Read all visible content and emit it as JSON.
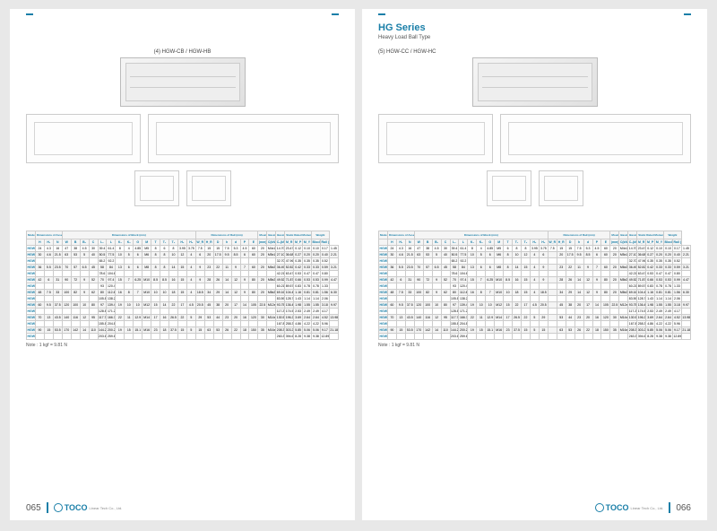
{
  "left_page": {
    "model_label": "(4) HGW-CB / HGW-HB",
    "page_num": "065",
    "logo_text": "TOCO",
    "logo_sub": "Linear Tech Co., Ltd.",
    "note": "Note : 1 kgf = 9.81 N",
    "headers_top": [
      "Model No.",
      "Dimensions of Assembly (mm)",
      "Dimensions of Block (mm)",
      "Dimensions of Rail (mm)",
      "Mounting Bolt for Rail",
      "Basic Dynamic Load Rating",
      "Basic Static Load Rating",
      "Static Rated Moment",
      "Weight"
    ],
    "cols": [
      "",
      "H",
      "H₁",
      "N",
      "W",
      "B",
      "B₁",
      "C",
      "L₁",
      "L",
      "K₁",
      "K₂",
      "G",
      "M",
      "T",
      "T₁",
      "T₂",
      "H₂",
      "H₃",
      "W_R",
      "H_R",
      "D",
      "h",
      "d",
      "P",
      "E",
      "(mm)",
      "C(kN)",
      "C₀(kN)",
      "M_R",
      "M_P",
      "M_Y",
      "Block (kg)",
      "Rail (kg/m)"
    ],
    "rows": [
      [
        "HGW15CB",
        "24",
        "4.3",
        "16",
        "47",
        "38",
        "4.5",
        "30",
        "39.4",
        "61.4",
        "8",
        "4",
        "4.85",
        "M5",
        "8",
        "6",
        "8",
        "3.95",
        "3.75",
        "7.5",
        "15",
        "15",
        "7.5",
        "5.3",
        "4.5",
        "60",
        "20",
        "M4x16",
        "14.70",
        "23.47",
        "0.12",
        "0.10",
        "0.10",
        "0.17",
        "1.45"
      ],
      [
        "HGW20CB",
        "30",
        "4.6",
        "21.5",
        "63",
        "53",
        "5",
        "40",
        "50.5",
        "77.5",
        "10",
        "5",
        "6",
        "M6",
        "8",
        "8",
        "10",
        "12",
        "4",
        "6",
        "20",
        "17.5",
        "9.5",
        "8.5",
        "6",
        "60",
        "20",
        "M5x16",
        "27.10",
        "36.68",
        "0.27",
        "0.20",
        "0.20",
        "0.40",
        "2.21"
      ],
      [
        "HGW20HB",
        "",
        "",
        "",
        "",
        "",
        "",
        "",
        "65.2",
        "92.2",
        "",
        "",
        "",
        "",
        "",
        "",
        "",
        "",
        "",
        "",
        "",
        "",
        "",
        "",
        "",
        "",
        "",
        "",
        "32.70",
        "47.96",
        "0.35",
        "0.35",
        "0.35",
        "0.52",
        ""
      ],
      [
        "HGW25CB",
        "36",
        "5.5",
        "23.5",
        "70",
        "57",
        "6.5",
        "45",
        "58",
        "84",
        "13",
        "6",
        "6",
        "M8",
        "8",
        "8",
        "14",
        "15",
        "4",
        "9",
        "23",
        "22",
        "11",
        "9",
        "7",
        "60",
        "20",
        "M6x20",
        "36.49",
        "52.82",
        "0.42",
        "0.33",
        "0.33",
        "0.59",
        "3.21"
      ],
      [
        "HGW25HB",
        "",
        "",
        "",
        "",
        "",
        "",
        "",
        "78.6",
        "104.6",
        "",
        "",
        "",
        "",
        "",
        "",
        "",
        "",
        "",
        "",
        "",
        "",
        "",
        "",
        "",
        "",
        "",
        "",
        "42.21",
        "63.47",
        "0.53",
        "0.47",
        "0.47",
        "0.80",
        ""
      ],
      [
        "HGW30CB",
        "42",
        "6",
        "31",
        "90",
        "72",
        "9",
        "52",
        "70",
        "97.4",
        "15",
        "7",
        "6.25",
        "M10",
        "8.5",
        "8.5",
        "16",
        "15",
        "4",
        "9",
        "28",
        "26",
        "14",
        "12",
        "9",
        "80",
        "20",
        "M8x25",
        "49.52",
        "71.87",
        "0.66",
        "0.53",
        "0.53",
        "0.99",
        "4.47"
      ],
      [
        "HGW30HB",
        "",
        "",
        "",
        "",
        "",
        "",
        "",
        "93",
        "120.4",
        "",
        "",
        "",
        "",
        "",
        "",
        "",
        "",
        "",
        "",
        "",
        "",
        "",
        "",
        "",
        "",
        "",
        "",
        "60.21",
        "89.57",
        "0.83",
        "0.78",
        "0.78",
        "1.33",
        ""
      ],
      [
        "HGW35CB",
        "48",
        "7.5",
        "33",
        "100",
        "82",
        "9",
        "62",
        "80",
        "112.4",
        "16",
        "8",
        "7",
        "M10",
        "10",
        "10",
        "18",
        "15",
        "4",
        "18.5",
        "34",
        "29",
        "14",
        "12",
        "9",
        "80",
        "20",
        "M8x25",
        "69.16",
        "104.41",
        "1.16",
        "0.81",
        "0.81",
        "1.56",
        "6.30"
      ],
      [
        "HGW35HB",
        "",
        "",
        "",
        "",
        "",
        "",
        "",
        "105.8",
        "138.2",
        "",
        "",
        "",
        "",
        "",
        "",
        "",
        "",
        "",
        "",
        "",
        "",
        "",
        "",
        "",
        "",
        "",
        "",
        "83.59",
        "128.72",
        "1.43",
        "1.14",
        "1.14",
        "2.06",
        ""
      ],
      [
        "HGW45CB",
        "60",
        "9.5",
        "37.5",
        "120",
        "100",
        "10",
        "80",
        "97",
        "139.4",
        "19",
        "10",
        "10",
        "M12",
        "15",
        "14",
        "22",
        "17",
        "4.5",
        "20.5",
        "45",
        "38",
        "20",
        "17",
        "14",
        "105",
        "22.5",
        "M12x35",
        "93.75",
        "136.46",
        "1.98",
        "1.55",
        "1.55",
        "3.18",
        "9.97"
      ],
      [
        "HGW45HB",
        "",
        "",
        "",
        "",
        "",
        "",
        "",
        "128.8",
        "171.2",
        "",
        "",
        "",
        "",
        "",
        "",
        "",
        "",
        "",
        "",
        "",
        "",
        "",
        "",
        "",
        "",
        "",
        "",
        "117.27",
        "174.52",
        "2.53",
        "2.49",
        "2.49",
        "4.17",
        ""
      ],
      [
        "HGW55CB",
        "70",
        "13",
        "43.5",
        "140",
        "116",
        "12",
        "95",
        "117.7",
        "166.7",
        "22",
        "11",
        "12.9",
        "M14",
        "17",
        "16",
        "26.5",
        "22",
        "5",
        "29",
        "53",
        "44",
        "23",
        "20",
        "16",
        "120",
        "30",
        "M14x45",
        "130.50",
        "196.20",
        "3.69",
        "2.64",
        "2.64",
        "4.52",
        "13.98"
      ],
      [
        "HGW55HB",
        "",
        "",
        "",
        "",
        "",
        "",
        "",
        "155.8",
        "204.8",
        "",
        "",
        "",
        "",
        "",
        "",
        "",
        "",
        "",
        "",
        "",
        "",
        "",
        "",
        "",
        "",
        "",
        "",
        "167.85",
        "258.33",
        "4.86",
        "4.22",
        "4.22",
        "5.96",
        ""
      ],
      [
        "HGW65CB",
        "90",
        "15",
        "53.5",
        "170",
        "142",
        "14",
        "110",
        "144.2",
        "200.2",
        "19",
        "15",
        "15.1",
        "M16",
        "23",
        "18",
        "37.5",
        "15",
        "5",
        "15",
        "63",
        "53",
        "26",
        "22",
        "18",
        "150",
        "35",
        "M16x50",
        "208.36",
        "303.27",
        "5.85",
        "5.06",
        "5.06",
        "9.17",
        "21.18"
      ],
      [
        "HGW65HB",
        "",
        "",
        "",
        "",
        "",
        "",
        "",
        "203.6",
        "259.6",
        "",
        "",
        "",
        "",
        "",
        "",
        "",
        "",
        "",
        "",
        "",
        "",
        "",
        "",
        "",
        "",
        "",
        "",
        "263.34",
        "394.66",
        "8.28",
        "9.38",
        "9.38",
        "12.89",
        ""
      ]
    ]
  },
  "right_page": {
    "series_title": "HG Series",
    "series_sub": "Heavy Load Ball Type",
    "model_label": "(5) HGW-CC / HGW-HC",
    "page_num": "066",
    "logo_text": "TOCO",
    "logo_sub": "Linear Tech Co., Ltd.",
    "note": "Note : 1 kgf = 9.81 N",
    "cols": [
      "",
      "H",
      "H₁",
      "N",
      "W",
      "B",
      "B₁",
      "C",
      "L₁",
      "L",
      "K₁",
      "K₂",
      "G",
      "M",
      "T",
      "T₁",
      "T₂",
      "H₂",
      "H₃",
      "W_R",
      "H_R",
      "D",
      "h",
      "d",
      "P",
      "E",
      "(mm)",
      "C(kN)",
      "C₀(kN)",
      "M_R",
      "M_P",
      "M_Y",
      "Block (kg)",
      "Rail (kg/m)"
    ],
    "rows": [
      [
        "HGW15CC",
        "24",
        "4.3",
        "16",
        "47",
        "38",
        "4.5",
        "30",
        "39.4",
        "61.4",
        "8",
        "4",
        "4.85",
        "M5",
        "6",
        "8",
        "8",
        "3.95",
        "3.75",
        "7.5",
        "15",
        "15",
        "7.5",
        "5.3",
        "4.5",
        "60",
        "20",
        "M4x16",
        "14.70",
        "23.47",
        "0.12",
        "0.10",
        "0.10",
        "0.17",
        "1.45"
      ],
      [
        "HGW20CC",
        "30",
        "4.6",
        "21.5",
        "63",
        "53",
        "5",
        "40",
        "50.5",
        "77.5",
        "10",
        "5",
        "6",
        "M6",
        "8",
        "10",
        "12",
        "4",
        "6",
        "",
        "20",
        "17.5",
        "9.5",
        "8.5",
        "6",
        "60",
        "20",
        "M5x16",
        "27.10",
        "36.68",
        "0.27",
        "0.20",
        "0.20",
        "0.40",
        "2.21"
      ],
      [
        "HGW20HC",
        "",
        "",
        "",
        "",
        "",
        "",
        "",
        "65.2",
        "92.2",
        "",
        "",
        "",
        "",
        "",
        "",
        "",
        "",
        "",
        "",
        "",
        "",
        "",
        "",
        "",
        "",
        "",
        "",
        "32.70",
        "47.96",
        "0.35",
        "0.35",
        "0.35",
        "0.52",
        ""
      ],
      [
        "HGW25CC",
        "36",
        "5.5",
        "23.5",
        "70",
        "57",
        "6.5",
        "45",
        "58",
        "84",
        "13",
        "6",
        "6",
        "M8",
        "8",
        "14",
        "15",
        "4",
        "9",
        "",
        "23",
        "22",
        "11",
        "9",
        "7",
        "60",
        "20",
        "M6x20",
        "36.49",
        "52.82",
        "0.42",
        "0.33",
        "0.33",
        "0.59",
        "3.21"
      ],
      [
        "HGW25HC",
        "",
        "",
        "",
        "",
        "",
        "",
        "",
        "78.6",
        "104.6",
        "",
        "",
        "",
        "",
        "",
        "",
        "",
        "",
        "",
        "",
        "",
        "",
        "",
        "",
        "",
        "",
        "",
        "",
        "42.21",
        "63.47",
        "0.53",
        "0.47",
        "0.47",
        "0.80",
        ""
      ],
      [
        "HGW30CC",
        "42",
        "6",
        "31",
        "90",
        "72",
        "9",
        "52",
        "70",
        "97.4",
        "15",
        "7",
        "6.25",
        "M10",
        "8.5",
        "16",
        "15",
        "4",
        "9",
        "",
        "28",
        "26",
        "14",
        "12",
        "9",
        "80",
        "20",
        "M8x25",
        "49.52",
        "71.87",
        "0.66",
        "0.53",
        "0.53",
        "0.99",
        "4.47"
      ],
      [
        "HGW30HC",
        "",
        "",
        "",
        "",
        "",
        "",
        "",
        "93",
        "120.4",
        "",
        "",
        "",
        "",
        "",
        "",
        "",
        "",
        "",
        "",
        "",
        "",
        "",
        "",
        "",
        "",
        "",
        "",
        "60.21",
        "89.57",
        "0.83",
        "0.78",
        "0.78",
        "1.33",
        ""
      ],
      [
        "HGW35CC",
        "48",
        "7.5",
        "33",
        "100",
        "82",
        "9",
        "62",
        "80",
        "112.4",
        "16",
        "8",
        "7",
        "M10",
        "10",
        "18",
        "15",
        "4",
        "18.5",
        "",
        "34",
        "29",
        "14",
        "12",
        "9",
        "80",
        "20",
        "M8x25",
        "69.16",
        "104.41",
        "1.16",
        "0.81",
        "0.81",
        "1.56",
        "6.30"
      ],
      [
        "HGW35HC",
        "",
        "",
        "",
        "",
        "",
        "",
        "",
        "105.8",
        "138.2",
        "",
        "",
        "",
        "",
        "",
        "",
        "",
        "",
        "",
        "",
        "",
        "",
        "",
        "",
        "",
        "",
        "",
        "",
        "83.59",
        "128.72",
        "1.43",
        "1.14",
        "1.14",
        "2.06",
        ""
      ],
      [
        "HGW45CC",
        "60",
        "9.5",
        "37.5",
        "120",
        "100",
        "10",
        "80",
        "97",
        "139.4",
        "19",
        "10",
        "10",
        "M12",
        "15",
        "22",
        "17",
        "4.5",
        "20.5",
        "",
        "45",
        "38",
        "20",
        "17",
        "14",
        "105",
        "22.5",
        "M12x35",
        "93.75",
        "136.46",
        "1.98",
        "1.55",
        "1.55",
        "3.18",
        "9.97"
      ],
      [
        "HGW45HC",
        "",
        "",
        "",
        "",
        "",
        "",
        "",
        "128.8",
        "171.2",
        "",
        "",
        "",
        "",
        "",
        "",
        "",
        "",
        "",
        "",
        "",
        "",
        "",
        "",
        "",
        "",
        "",
        "",
        "117.27",
        "174.52",
        "2.53",
        "2.49",
        "2.49",
        "4.17",
        ""
      ],
      [
        "HGW55CC",
        "70",
        "13",
        "43.5",
        "140",
        "116",
        "12",
        "95",
        "117.7",
        "166.7",
        "22",
        "11",
        "12.9",
        "M14",
        "17",
        "26.5",
        "22",
        "5",
        "29",
        "",
        "53",
        "44",
        "23",
        "20",
        "16",
        "120",
        "30",
        "M14x45",
        "130.50",
        "196.20",
        "3.69",
        "2.64",
        "2.64",
        "4.52",
        "13.98"
      ],
      [
        "HGW55HC",
        "",
        "",
        "",
        "",
        "",
        "",
        "",
        "155.8",
        "204.8",
        "",
        "",
        "",
        "",
        "",
        "",
        "",
        "",
        "",
        "",
        "",
        "",
        "",
        "",
        "",
        "",
        "",
        "",
        "167.85",
        "258.33",
        "4.86",
        "4.22",
        "4.22",
        "5.96",
        ""
      ],
      [
        "HGW65CC",
        "90",
        "15",
        "53.5",
        "170",
        "142",
        "14",
        "110",
        "144.2",
        "200.2",
        "19",
        "15",
        "15.1",
        "M16",
        "23",
        "37.5",
        "15",
        "5",
        "15",
        "",
        "63",
        "53",
        "26",
        "22",
        "18",
        "150",
        "35",
        "M16x50",
        "208.36",
        "303.27",
        "5.85",
        "5.06",
        "5.06",
        "9.17",
        "21.18"
      ],
      [
        "HGW65HC",
        "",
        "",
        "",
        "",
        "",
        "",
        "",
        "203.6",
        "259.6",
        "",
        "",
        "",
        "",
        "",
        "",
        "",
        "",
        "",
        "",
        "",
        "",
        "",
        "",
        "",
        "",
        "",
        "",
        "263.34",
        "394.66",
        "8.28",
        "9.38",
        "9.38",
        "12.89",
        ""
      ]
    ]
  }
}
